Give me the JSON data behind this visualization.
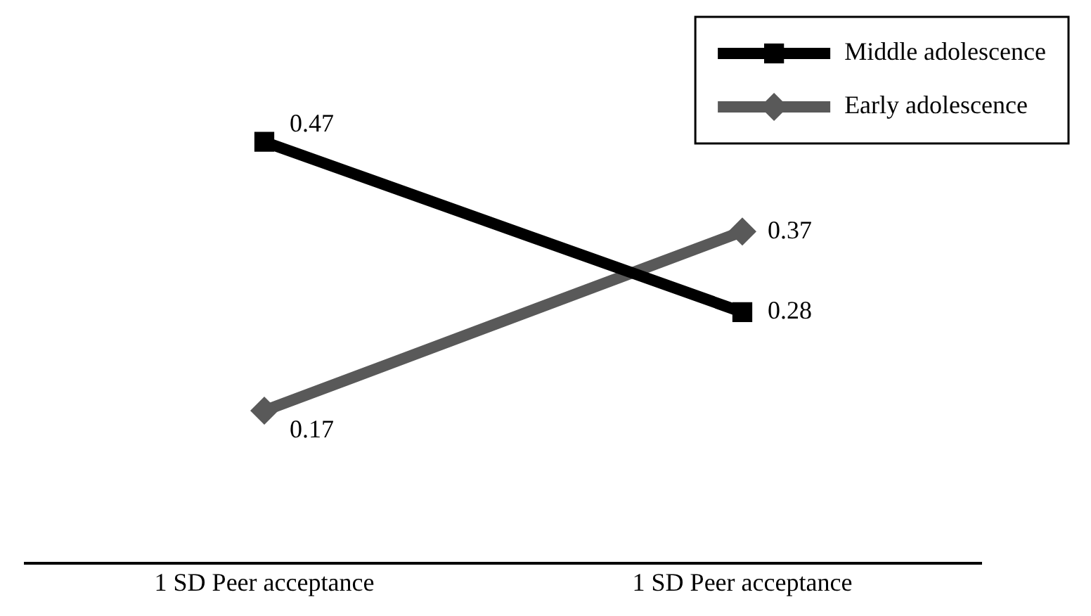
{
  "chart_data": {
    "type": "line",
    "categories": [
      "1 SD Peer acceptance",
      "1 SD Peer acceptance"
    ],
    "series": [
      {
        "name": "Middle adolescence",
        "color": "#000000",
        "values": [
          0.47,
          0.28
        ],
        "marker": "square"
      },
      {
        "name": "Early adolescence",
        "color": "#595959",
        "values": [
          0.17,
          0.37
        ],
        "marker": "diamond"
      }
    ],
    "tick_labels": "x",
    "data_labels": true,
    "legend": "top right",
    "grid": false
  }
}
